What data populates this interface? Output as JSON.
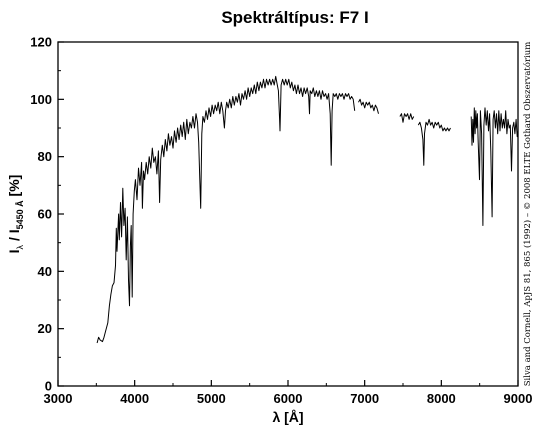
{
  "chart_data": {
    "type": "line",
    "title": "Spektráltípus: F7 I",
    "xlabel": "λ [Å]",
    "ylabel": {
      "main": "I",
      "sub1": "λ",
      "mid": " / I",
      "sub2": "5450 Å",
      "unit": " [%]"
    },
    "xlim": [
      3000,
      9000
    ],
    "ylim": [
      0,
      120
    ],
    "xticks": [
      3000,
      4000,
      5000,
      6000,
      7000,
      8000,
      9000
    ],
    "yticks": [
      0,
      20,
      40,
      60,
      80,
      100,
      120
    ],
    "grid": false,
    "credit": "Silva and Cornell, ApJS 81, 865 (1992) – © 2008 ELTE Gothard Obszervatórium",
    "line_color": "#000000",
    "series": [
      {
        "segments": [
          [
            [
              3510,
              15
            ],
            [
              3530,
              17
            ],
            [
              3550,
              16
            ],
            [
              3580,
              15.5
            ],
            [
              3600,
              17
            ],
            [
              3620,
              19
            ],
            [
              3650,
              22
            ],
            [
              3670,
              28
            ],
            [
              3690,
              32
            ],
            [
              3710,
              35
            ],
            [
              3730,
              36
            ],
            [
              3750,
              42
            ],
            [
              3760,
              55
            ],
            [
              3770,
              47
            ],
            [
              3790,
              60
            ],
            [
              3800,
              51
            ],
            [
              3815,
              64
            ],
            [
              3830,
              52
            ],
            [
              3845,
              69
            ],
            [
              3860,
              56
            ],
            [
              3875,
              62
            ],
            [
              3890,
              44
            ],
            [
              3905,
              59
            ],
            [
              3920,
              37
            ],
            [
              3933,
              28
            ],
            [
              3945,
              49
            ],
            [
              3955,
              56
            ],
            [
              3968,
              31
            ],
            [
              3980,
              60
            ],
            [
              3995,
              68
            ],
            [
              4010,
              72
            ],
            [
              4030,
              65
            ],
            [
              4050,
              76
            ],
            [
              4070,
              70
            ],
            [
              4090,
              78
            ],
            [
              4101,
              62
            ],
            [
              4115,
              75
            ],
            [
              4130,
              72
            ],
            [
              4150,
              78
            ],
            [
              4170,
              74
            ],
            [
              4190,
              80
            ],
            [
              4210,
              76
            ],
            [
              4230,
              83
            ],
            [
              4250,
              78
            ],
            [
              4270,
              80
            ],
            [
              4290,
              74
            ],
            [
              4310,
              82
            ],
            [
              4325,
              64
            ],
            [
              4340,
              79
            ],
            [
              4360,
              84
            ],
            [
              4380,
              80
            ],
            [
              4400,
              86
            ],
            [
              4420,
              82
            ],
            [
              4440,
              88
            ],
            [
              4460,
              84
            ],
            [
              4480,
              87
            ],
            [
              4500,
              83
            ],
            [
              4520,
              89
            ],
            [
              4540,
              85
            ],
            [
              4560,
              90
            ],
            [
              4580,
              86
            ],
            [
              4600,
              91
            ],
            [
              4620,
              87
            ],
            [
              4640,
              92
            ],
            [
              4660,
              86
            ],
            [
              4680,
              93
            ],
            [
              4700,
              88
            ],
            [
              4720,
              92
            ],
            [
              4740,
              90
            ],
            [
              4760,
              94
            ],
            [
              4780,
              90
            ],
            [
              4800,
              95
            ],
            [
              4820,
              92
            ],
            [
              4835,
              85
            ],
            [
              4850,
              72
            ],
            [
              4861,
              62
            ],
            [
              4875,
              88
            ],
            [
              4890,
              94
            ],
            [
              4910,
              92
            ],
            [
              4930,
              96
            ],
            [
              4950,
              93
            ],
            [
              4970,
              97
            ],
            [
              4990,
              94
            ],
            [
              5010,
              98
            ],
            [
              5030,
              95
            ],
            [
              5050,
              98
            ],
            [
              5070,
              96
            ],
            [
              5090,
              99
            ],
            [
              5110,
              95
            ],
            [
              5130,
              99
            ],
            [
              5150,
              96
            ],
            [
              5170,
              90
            ],
            [
              5185,
              96
            ],
            [
              5200,
              99
            ],
            [
              5220,
              97
            ],
            [
              5240,
              100
            ],
            [
              5260,
              97
            ],
            [
              5280,
              101
            ],
            [
              5300,
              98
            ],
            [
              5320,
              101
            ],
            [
              5340,
              99
            ],
            [
              5360,
              102
            ],
            [
              5380,
              98
            ],
            [
              5400,
              102
            ],
            [
              5420,
              100
            ],
            [
              5440,
              103
            ],
            [
              5460,
              100
            ],
            [
              5480,
              104
            ],
            [
              5500,
              101
            ],
            [
              5520,
              104
            ],
            [
              5540,
              102
            ],
            [
              5560,
              105
            ],
            [
              5580,
              102
            ],
            [
              5600,
              106
            ],
            [
              5620,
              103
            ],
            [
              5640,
              106
            ],
            [
              5660,
              104
            ],
            [
              5680,
              107
            ],
            [
              5700,
              104
            ],
            [
              5720,
              107
            ],
            [
              5740,
              105
            ],
            [
              5760,
              107
            ],
            [
              5780,
              105
            ],
            [
              5800,
              107
            ],
            [
              5820,
              105
            ],
            [
              5840,
              108
            ],
            [
              5860,
              105
            ],
            [
              5875,
              103
            ],
            [
              5890,
              93
            ],
            [
              5896,
              89
            ],
            [
              5910,
              105
            ],
            [
              5930,
              107
            ],
            [
              5950,
              105
            ],
            [
              5970,
              107
            ],
            [
              5990,
              105
            ],
            [
              6010,
              107
            ],
            [
              6030,
              104
            ],
            [
              6050,
              106
            ],
            [
              6070,
              103
            ],
            [
              6090,
              105
            ],
            [
              6110,
              102
            ],
            [
              6130,
              105
            ],
            [
              6150,
              102
            ],
            [
              6170,
              104
            ],
            [
              6190,
              101
            ],
            [
              6210,
              104
            ],
            [
              6230,
              102
            ],
            [
              6250,
              104
            ],
            [
              6270,
              101
            ],
            [
              6280,
              95
            ],
            [
              6290,
              103
            ],
            [
              6310,
              102
            ],
            [
              6330,
              104
            ],
            [
              6350,
              101
            ],
            [
              6370,
              103
            ],
            [
              6390,
              101
            ],
            [
              6410,
              103
            ],
            [
              6430,
              100
            ],
            [
              6450,
              103
            ],
            [
              6470,
              101
            ],
            [
              6490,
              102
            ],
            [
              6510,
              100
            ],
            [
              6530,
              102
            ],
            [
              6550,
              95
            ],
            [
              6563,
              77
            ],
            [
              6575,
              96
            ],
            [
              6590,
              102
            ],
            [
              6610,
              101
            ],
            [
              6630,
              102
            ],
            [
              6650,
              100
            ],
            [
              6670,
              102
            ],
            [
              6690,
              101
            ],
            [
              6710,
              102
            ],
            [
              6730,
              100
            ],
            [
              6750,
              102
            ],
            [
              6770,
              101
            ],
            [
              6790,
              102
            ],
            [
              6810,
              100
            ],
            [
              6830,
              101
            ],
            [
              6850,
              100
            ],
            [
              6870,
              96
            ]
          ],
          [
            [
              6920,
              99
            ],
            [
              6940,
              100
            ],
            [
              6960,
              98
            ],
            [
              6980,
              99
            ],
            [
              7000,
              97
            ],
            [
              7020,
              99
            ],
            [
              7040,
              98
            ],
            [
              7060,
              99
            ],
            [
              7080,
              97
            ],
            [
              7100,
              98
            ],
            [
              7120,
              96
            ],
            [
              7140,
              98
            ],
            [
              7160,
              97
            ],
            [
              7180,
              95
            ]
          ],
          [
            [
              7460,
              94
            ],
            [
              7480,
              95
            ],
            [
              7500,
              92
            ],
            [
              7520,
              95
            ],
            [
              7540,
              94
            ],
            [
              7560,
              95
            ],
            [
              7580,
              93
            ],
            [
              7600,
              95
            ],
            [
              7620,
              93
            ],
            [
              7640,
              94
            ]
          ],
          [
            [
              7700,
              91
            ],
            [
              7720,
              92
            ],
            [
              7740,
              90
            ],
            [
              7760,
              86
            ],
            [
              7771,
              77
            ],
            [
              7780,
              88
            ],
            [
              7800,
              92
            ],
            [
              7820,
              91
            ],
            [
              7840,
              93
            ],
            [
              7860,
              91
            ],
            [
              7880,
              92
            ],
            [
              7900,
              90
            ],
            [
              7920,
              92
            ],
            [
              7940,
              91
            ],
            [
              7960,
              92
            ],
            [
              7980,
              90
            ],
            [
              8000,
              91
            ],
            [
              8020,
              89
            ],
            [
              8040,
              90
            ],
            [
              8060,
              89
            ],
            [
              8080,
              90
            ],
            [
              8100,
              89
            ],
            [
              8120,
              90
            ]
          ],
          [
            [
              8390,
              94
            ],
            [
              8400,
              84
            ],
            [
              8410,
              93
            ],
            [
              8420,
              85
            ],
            [
              8430,
              97
            ],
            [
              8440,
              88
            ],
            [
              8450,
              96
            ],
            [
              8460,
              90
            ],
            [
              8470,
              95
            ],
            [
              8480,
              86
            ],
            [
              8498,
              72
            ],
            [
              8510,
              96
            ],
            [
              8525,
              88
            ],
            [
              8542,
              56
            ],
            [
              8555,
              91
            ],
            [
              8570,
              97
            ],
            [
              8585,
              91
            ],
            [
              8600,
              96
            ],
            [
              8615,
              89
            ],
            [
              8630,
              95
            ],
            [
              8645,
              82
            ],
            [
              8662,
              59
            ],
            [
              8675,
              93
            ],
            [
              8690,
              96
            ],
            [
              8705,
              90
            ],
            [
              8720,
              95
            ],
            [
              8735,
              88
            ],
            [
              8750,
              96
            ],
            [
              8765,
              89
            ],
            [
              8780,
              95
            ],
            [
              8795,
              90
            ],
            [
              8810,
              93
            ],
            [
              8825,
              90
            ],
            [
              8840,
              96
            ],
            [
              8855,
              88
            ],
            [
              8870,
              93
            ],
            [
              8885,
              90
            ],
            [
              8900,
              91
            ],
            [
              8915,
              75
            ],
            [
              8930,
              90
            ],
            [
              8945,
              92
            ],
            [
              8960,
              88
            ],
            [
              8975,
              93
            ],
            [
              8990,
              87
            ],
            [
              9000,
              89
            ]
          ]
        ]
      }
    ]
  }
}
